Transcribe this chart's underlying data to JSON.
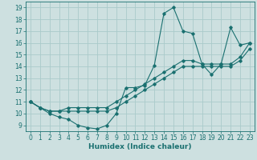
{
  "title": "",
  "xlabel": "Humidex (Indice chaleur)",
  "bg_color": "#cde0e0",
  "grid_color": "#aacaca",
  "line_color": "#1a7070",
  "xlim": [
    -0.5,
    23.5
  ],
  "ylim": [
    8.5,
    19.5
  ],
  "xticks": [
    0,
    1,
    2,
    3,
    4,
    5,
    6,
    7,
    8,
    9,
    10,
    11,
    12,
    13,
    14,
    15,
    16,
    17,
    18,
    19,
    20,
    21,
    22,
    23
  ],
  "yticks": [
    9,
    10,
    11,
    12,
    13,
    14,
    15,
    16,
    17,
    18,
    19
  ],
  "line1_x": [
    0,
    1,
    2,
    3,
    4,
    5,
    6,
    7,
    8,
    9,
    10,
    11,
    12,
    13,
    14,
    15,
    16,
    17,
    18,
    19,
    20,
    21,
    22,
    23
  ],
  "line1_y": [
    11.0,
    10.5,
    10.0,
    9.7,
    9.5,
    9.0,
    8.8,
    8.7,
    9.0,
    10.0,
    12.2,
    12.2,
    12.4,
    14.1,
    18.5,
    19.0,
    17.0,
    16.8,
    14.2,
    13.3,
    14.2,
    17.3,
    15.8,
    16.0
  ],
  "line2_x": [
    0,
    1,
    2,
    3,
    4,
    5,
    6,
    7,
    8,
    9,
    10,
    11,
    12,
    13,
    14,
    15,
    16,
    17,
    18,
    19,
    20,
    21,
    22,
    23
  ],
  "line2_y": [
    11.0,
    10.5,
    10.2,
    10.2,
    10.5,
    10.5,
    10.5,
    10.5,
    10.5,
    11.0,
    11.5,
    12.0,
    12.5,
    13.0,
    13.5,
    14.0,
    14.5,
    14.5,
    14.2,
    14.2,
    14.2,
    14.2,
    14.8,
    16.0
  ],
  "line3_x": [
    0,
    1,
    2,
    3,
    4,
    5,
    6,
    7,
    8,
    9,
    10,
    11,
    12,
    13,
    14,
    15,
    16,
    17,
    18,
    19,
    20,
    21,
    22,
    23
  ],
  "line3_y": [
    11.0,
    10.5,
    10.2,
    10.2,
    10.2,
    10.2,
    10.2,
    10.2,
    10.2,
    10.5,
    11.0,
    11.5,
    12.0,
    12.5,
    13.0,
    13.5,
    14.0,
    14.0,
    14.0,
    14.0,
    14.0,
    14.0,
    14.5,
    15.5
  ],
  "tick_fontsize": 5.5,
  "xlabel_fontsize": 6.5
}
